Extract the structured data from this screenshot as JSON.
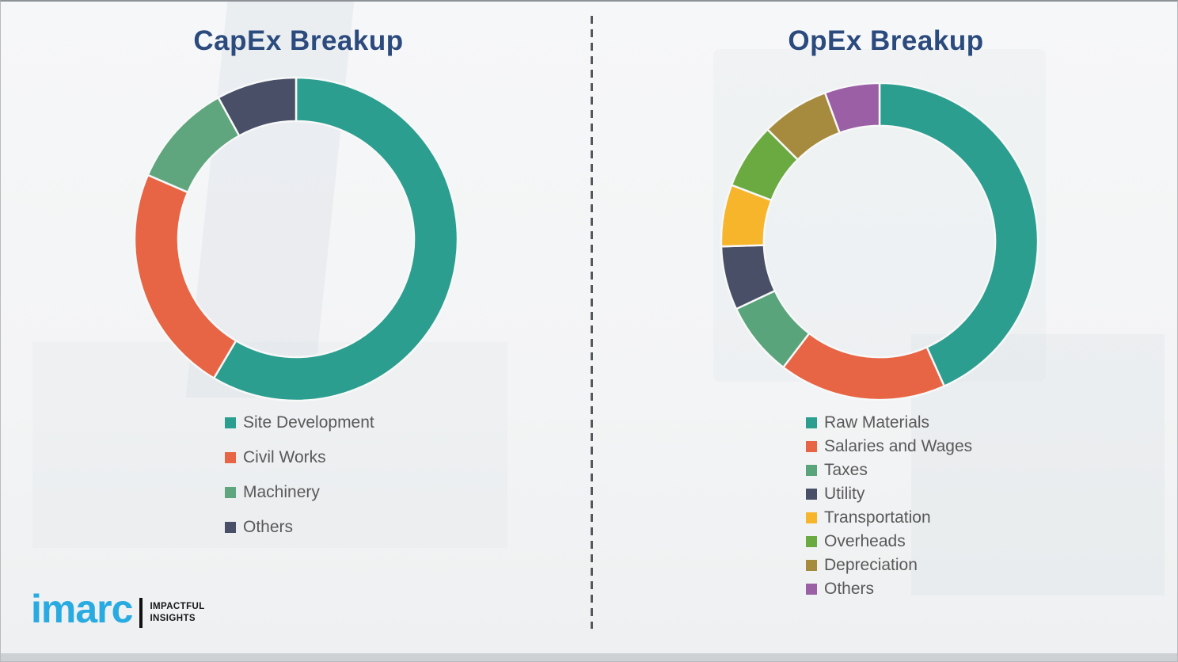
{
  "page": {
    "background_color": "#f3f4f5",
    "border_color": "#b7bbbf",
    "divider_color": "#54585e",
    "title_color": "#2b4a7d",
    "legend_text_color": "#595959"
  },
  "chart_data": [
    {
      "id": "capex",
      "type": "pie",
      "subtype": "donut",
      "title": "CapEx Breakup",
      "start_angle_deg": 0,
      "direction": "clockwise",
      "legend_position": "below-left",
      "segments": [
        {
          "label": "Site Development",
          "value_pct": 58.5,
          "color": "#2b9e8f"
        },
        {
          "label": "Civil Works",
          "value_pct": 23.0,
          "color": "#e76545"
        },
        {
          "label": "Machinery",
          "value_pct": 10.5,
          "color": "#5fa57d"
        },
        {
          "label": "Others",
          "value_pct": 8.0,
          "color": "#494f66"
        }
      ]
    },
    {
      "id": "opex",
      "type": "pie",
      "subtype": "donut",
      "title": "OpEx Breakup",
      "start_angle_deg": 0,
      "direction": "clockwise",
      "legend_position": "below-left",
      "segments": [
        {
          "label": "Raw Materials",
          "value_pct": 43.3,
          "color": "#2b9e8f"
        },
        {
          "label": "Salaries and Wages",
          "value_pct": 17.1,
          "color": "#e76545"
        },
        {
          "label": "Taxes",
          "value_pct": 7.6,
          "color": "#5aa47c"
        },
        {
          "label": "Utility",
          "value_pct": 6.5,
          "color": "#494f66"
        },
        {
          "label": "Transportation",
          "value_pct": 6.3,
          "color": "#f6b52b"
        },
        {
          "label": "Overheads",
          "value_pct": 6.7,
          "color": "#6baa41"
        },
        {
          "label": "Depreciation",
          "value_pct": 6.9,
          "color": "#a68a3d"
        },
        {
          "label": "Others",
          "value_pct": 5.6,
          "color": "#9b5fa5"
        }
      ]
    }
  ],
  "logo": {
    "brand": "imarc",
    "brand_color": "#29abe2",
    "tagline_line1": "IMPACTFUL",
    "tagline_line2": "INSIGHTS"
  }
}
